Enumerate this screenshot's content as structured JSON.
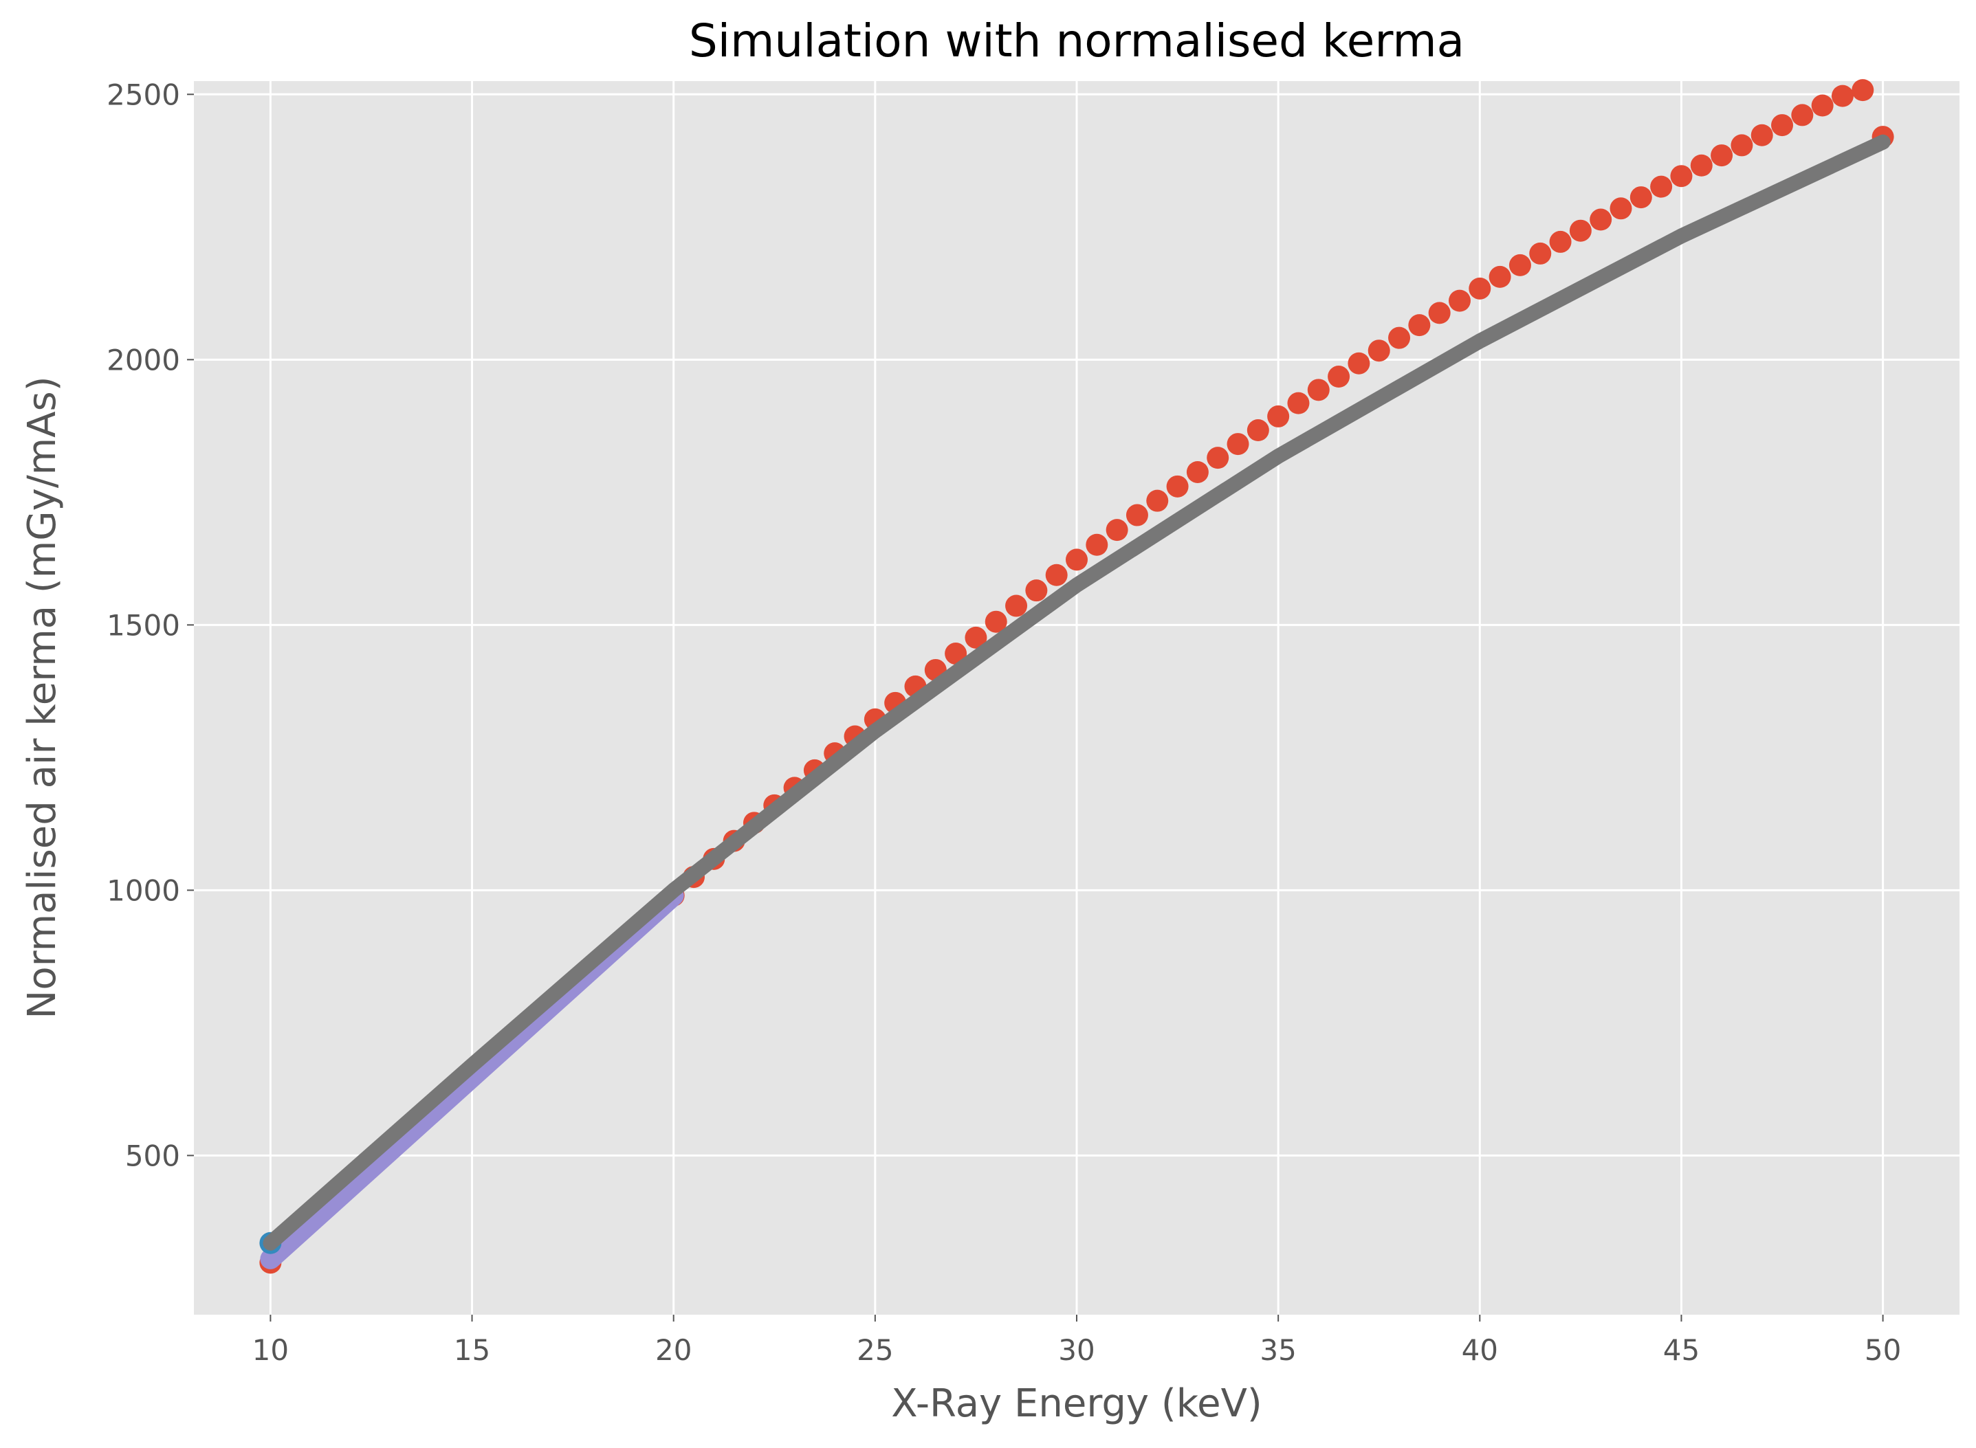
{
  "chart_data": {
    "type": "line",
    "title": "Simulation with normalised kerma",
    "xlabel": "X-Ray Energy (keV)",
    "ylabel": "Normalised air kerma (mGy/mAs)",
    "xlim": [
      8.1,
      51.9
    ],
    "ylim": [
      200,
      2525
    ],
    "xticks": [
      10,
      15,
      20,
      25,
      30,
      35,
      40,
      45,
      50
    ],
    "yticks": [
      500,
      1000,
      1500,
      2000,
      2500
    ],
    "grid": true,
    "legend": "none",
    "background": "#e5e5e5",
    "series": [
      {
        "style": "scatter",
        "color": "#e24a33",
        "x": [
          10,
          20,
          20.5,
          21,
          21.5,
          22,
          22.5,
          23,
          23.5,
          24,
          24.5,
          25,
          25.5,
          26,
          26.5,
          27,
          27.5,
          28,
          28.5,
          29,
          29.5,
          30,
          30.5,
          31,
          31.5,
          32,
          32.5,
          33,
          33.5,
          34,
          34.5,
          35,
          35.5,
          36,
          36.5,
          37,
          37.5,
          38,
          38.5,
          39,
          39.5,
          40,
          40.5,
          41,
          41.5,
          42,
          42.5,
          43,
          43.5,
          44,
          44.5,
          45,
          45.5,
          46,
          46.5,
          47,
          47.5,
          48,
          48.5,
          49,
          49.5,
          50
        ],
        "y": [
          298,
          990,
          1025,
          1059,
          1093,
          1127,
          1160,
          1193,
          1226,
          1258,
          1290,
          1322,
          1353,
          1384,
          1415,
          1446,
          1476,
          1506,
          1536,
          1565,
          1594,
          1623,
          1651,
          1679,
          1707,
          1734,
          1761,
          1788,
          1815,
          1841,
          1867,
          1893,
          1918,
          1943,
          1968,
          1993,
          2017,
          2041,
          2065,
          2088,
          2111,
          2134,
          2156,
          2178,
          2200,
          2222,
          2243,
          2264,
          2285,
          2306,
          2326,
          2346,
          2366,
          2385,
          2404,
          2423,
          2442,
          2461,
          2479,
          2497,
          2508,
          2420
        ]
      },
      {
        "style": "scatter",
        "color": "#348abd",
        "x": [
          10
        ],
        "y": [
          335
        ]
      },
      {
        "style": "line",
        "color": "#988ed5",
        "x": [
          10,
          20
        ],
        "y": [
          305,
          990
        ]
      },
      {
        "style": "line",
        "color": "#777777",
        "x": [
          10,
          15,
          20,
          25,
          30,
          35,
          40,
          45,
          50
        ],
        "y": [
          335,
          670,
          1000,
          1300,
          1575,
          1818,
          2035,
          2233,
          2410
        ]
      }
    ]
  }
}
